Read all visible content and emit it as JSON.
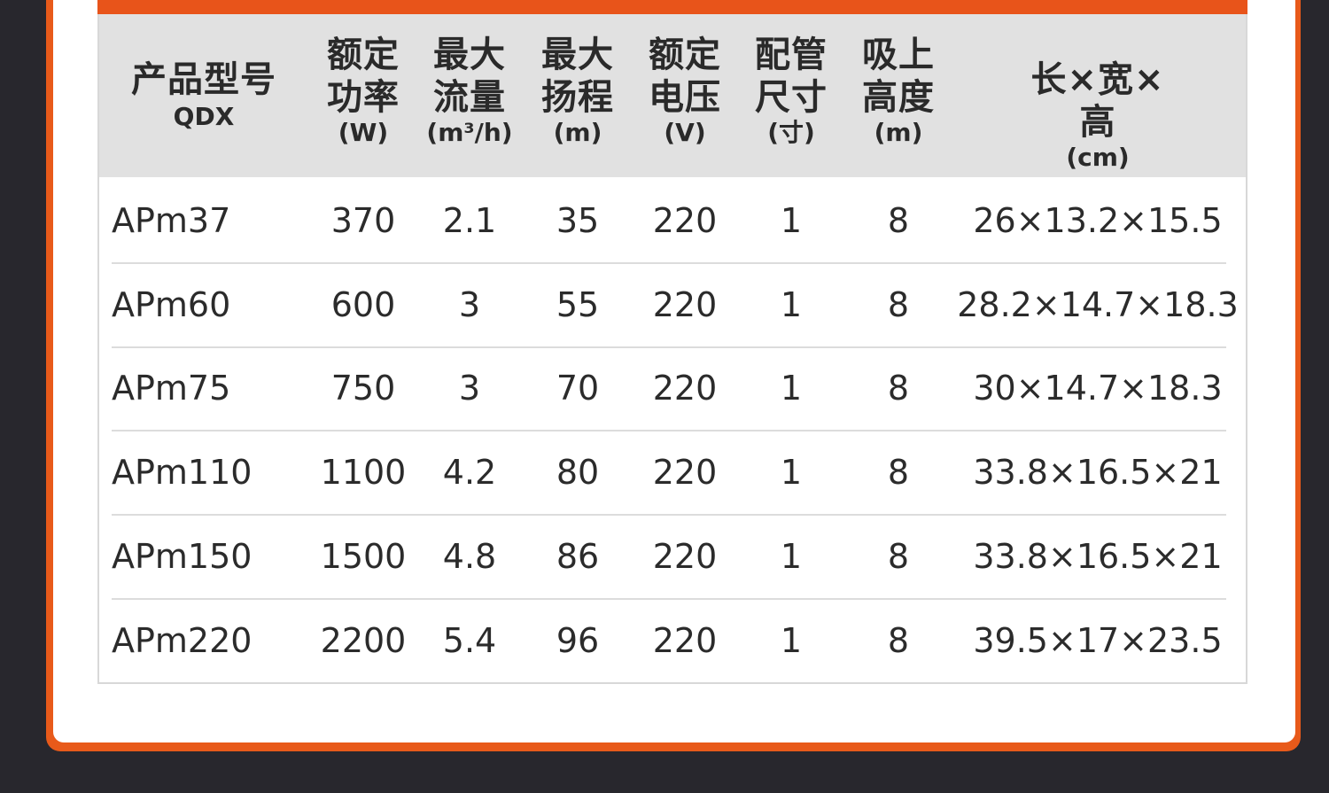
{
  "header": {
    "columns": [
      {
        "title": "产品型号",
        "unit": "QDX"
      },
      {
        "title": "额定\n功率",
        "unit": "(W)"
      },
      {
        "title": "最大\n流量",
        "unit": "(m³/h)"
      },
      {
        "title": "最大\n扬程",
        "unit": "(m)"
      },
      {
        "title": "额定\n电压",
        "unit": "(V)"
      },
      {
        "title": "配管\n尺寸",
        "unit": "(寸)"
      },
      {
        "title": "吸上\n高度",
        "unit": "(m)"
      },
      {
        "title": "长×宽×高",
        "unit": "(cm)"
      }
    ]
  },
  "rows": [
    [
      "APm37",
      "370",
      "2.1",
      "35",
      "220",
      "1",
      "8",
      "26×13.2×15.5"
    ],
    [
      "APm60",
      "600",
      "3",
      "55",
      "220",
      "1",
      "8",
      "28.2×14.7×18.3"
    ],
    [
      "APm75",
      "750",
      "3",
      "70",
      "220",
      "1",
      "8",
      "30×14.7×18.3"
    ],
    [
      "APm110",
      "1100",
      "4.2",
      "80",
      "220",
      "1",
      "8",
      "33.8×16.5×21"
    ],
    [
      "APm150",
      "1500",
      "4.8",
      "86",
      "220",
      "1",
      "8",
      "33.8×16.5×21"
    ],
    [
      "APm220",
      "2200",
      "5.4",
      "96",
      "220",
      "1",
      "8",
      "39.5×17×23.5"
    ]
  ],
  "colors": {
    "accent": "#e8541a",
    "header_bg": "#e1e1e1",
    "background": "#28272d"
  }
}
